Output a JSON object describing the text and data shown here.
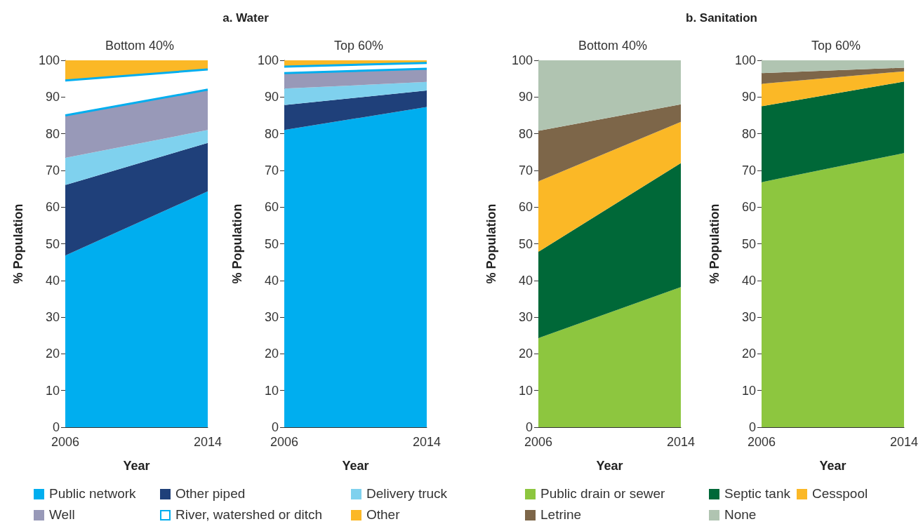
{
  "chart_data": [
    {
      "type": "area",
      "stacked": true,
      "title": "a. Water",
      "subtitle": "Bottom 40%",
      "xlabel": "Year",
      "ylabel": "% Population",
      "categories": [
        "2006",
        "2014"
      ],
      "ylim": [
        0,
        100
      ],
      "yticks": [
        0,
        10,
        20,
        30,
        40,
        50,
        60,
        70,
        80,
        90,
        100
      ],
      "grid": false,
      "legend": "bottom",
      "series": [
        {
          "name": "Public network",
          "color": "#00aeef",
          "values": [
            46.8,
            64.3
          ]
        },
        {
          "name": "Other piped",
          "color": "#1f407a",
          "values": [
            19.2,
            13.2
          ]
        },
        {
          "name": "Delivery truck",
          "color": "#7fd1ee",
          "values": [
            7.4,
            3.5
          ]
        },
        {
          "name": "Well",
          "color": "#9899b8",
          "values": [
            11.6,
            11
          ]
        },
        {
          "name": "River, watershed or ditch",
          "color": "#ffffff",
          "values": [
            9.5,
            5.5
          ]
        },
        {
          "name": "Other",
          "color": "#fbb826",
          "values": [
            5.5,
            2.5
          ]
        }
      ]
    },
    {
      "type": "area",
      "stacked": true,
      "subtitle": "Top 60%",
      "xlabel": "Year",
      "ylabel": "% Population",
      "categories": [
        "2006",
        "2014"
      ],
      "ylim": [
        0,
        100
      ],
      "yticks": [
        0,
        10,
        20,
        30,
        40,
        50,
        60,
        70,
        80,
        90,
        100
      ],
      "grid": false,
      "series": [
        {
          "color": "#00aeef",
          "values": [
            81,
            87.3
          ]
        },
        {
          "color": "#1f407a",
          "values": [
            6.8,
            4.5
          ]
        },
        {
          "color": "#7fd1ee",
          "values": [
            4.5,
            2.3
          ]
        },
        {
          "color": "#9899b8",
          "values": [
            4.2,
            3.6
          ]
        },
        {
          "color": "#ffffff",
          "values": [
            1.8,
            1.6
          ]
        },
        {
          "color": "#fbb826",
          "values": [
            1.7,
            0.7
          ]
        }
      ]
    },
    {
      "type": "area",
      "stacked": true,
      "title": "b. Sanitation",
      "subtitle": "Bottom 40%",
      "xlabel": "Year",
      "ylabel": "% Population",
      "categories": [
        "2006",
        "2014"
      ],
      "ylim": [
        0,
        100
      ],
      "yticks": [
        0,
        10,
        20,
        30,
        40,
        50,
        60,
        70,
        80,
        90,
        100
      ],
      "grid": false,
      "legend": "bottom",
      "series": [
        {
          "name": "Public drain or sewer",
          "color": "#8dc63f",
          "values": [
            24.3,
            38.2
          ]
        },
        {
          "name": "Septic tank",
          "color": "#006838",
          "values": [
            23.5,
            33.8
          ]
        },
        {
          "name": "Cesspool",
          "color": "#fbb826",
          "values": [
            19.2,
            11.2
          ]
        },
        {
          "name": "Letrine",
          "color": "#7d6649",
          "values": [
            13.8,
            4.8
          ]
        },
        {
          "name": "None",
          "color": "#b0c4b1",
          "values": [
            19.2,
            12
          ]
        }
      ]
    },
    {
      "type": "area",
      "stacked": true,
      "subtitle": "Top 60%",
      "xlabel": "Year",
      "ylabel": "% Population",
      "categories": [
        "2006",
        "2014"
      ],
      "ylim": [
        0,
        100
      ],
      "yticks": [
        0,
        10,
        20,
        30,
        40,
        50,
        60,
        70,
        80,
        90,
        100
      ],
      "grid": false,
      "series": [
        {
          "color": "#8dc63f",
          "values": [
            66.8,
            74.7
          ]
        },
        {
          "color": "#006838",
          "values": [
            20.7,
            19.5
          ]
        },
        {
          "color": "#fbb826",
          "values": [
            6.1,
            2.8
          ]
        },
        {
          "color": "#7d6649",
          "values": [
            2.9,
            1
          ]
        },
        {
          "color": "#b0c4b1",
          "values": [
            3.5,
            2
          ]
        }
      ]
    }
  ]
}
